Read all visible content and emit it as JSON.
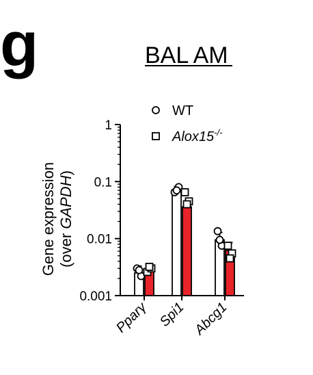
{
  "panel_label": "g",
  "chart_data": {
    "type": "bar",
    "title": "BAL AM",
    "ylabel_line1": "Gene expression",
    "ylabel_line2_prefix": "(over ",
    "ylabel_line2_italic": "GAPDH",
    "ylabel_line2_suffix": ")",
    "yscale": "log",
    "ylim": [
      0.001,
      1
    ],
    "yticks": [
      0.001,
      0.01,
      0.1,
      1
    ],
    "ytick_labels": [
      "0.001",
      "0.01",
      "0.1",
      "1"
    ],
    "categories": [
      "Pparγ",
      "Spi1",
      "Abcg1"
    ],
    "series": [
      {
        "name": "WT",
        "legend_base": "WT",
        "legend_sup": "",
        "color": "#ffffff",
        "marker": "circle",
        "values": [
          0.0025,
          0.072,
          0.0095
        ],
        "errors_up": [
          0.0033,
          0.082,
          0.0128
        ],
        "points": [
          [
            0.003,
            0.0022,
            0.0028
          ],
          [
            0.065,
            0.08,
            0.07
          ],
          [
            0.0135,
            0.0075,
            0.0095
          ]
        ]
      },
      {
        "name": "Alox15-/-",
        "legend_base": "Alox15",
        "legend_sup": "-/-",
        "color": "#e8242a",
        "marker": "square",
        "values": [
          0.0028,
          0.036,
          0.0062
        ],
        "errors_up": [
          0.0033,
          0.046,
          0.0085
        ],
        "points": [
          [
            0.0026,
            0.003,
            0.0032
          ],
          [
            0.065,
            0.045,
            0.04
          ],
          [
            0.0075,
            0.0055,
            0.0045
          ]
        ]
      }
    ]
  }
}
